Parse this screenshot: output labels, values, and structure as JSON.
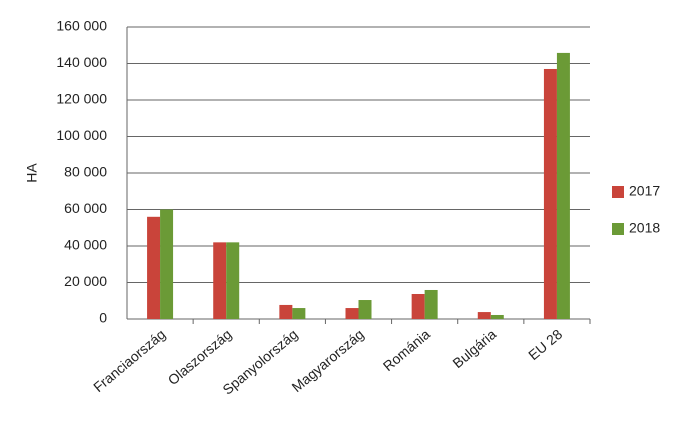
{
  "chart_data": {
    "type": "bar",
    "y_label": "HA",
    "categories": [
      "Franciaország",
      "Olaszország",
      "Spanyolország",
      "Magyarország",
      "Románia",
      "Bulgária",
      "EU 28"
    ],
    "series": [
      {
        "name": "2017",
        "color": "#c9443a",
        "values": [
          56000,
          42000,
          7700,
          6000,
          13700,
          3800,
          137000
        ]
      },
      {
        "name": "2018",
        "color": "#6b9a36",
        "values": [
          60000,
          42000,
          6000,
          10400,
          15900,
          2200,
          145800
        ]
      }
    ],
    "ylim": [
      0,
      160000
    ],
    "yticks": [
      {
        "value": 0,
        "label": "0"
      },
      {
        "value": 20000,
        "label": "20 000"
      },
      {
        "value": 40000,
        "label": "40 000"
      },
      {
        "value": 60000,
        "label": "60 000"
      },
      {
        "value": 80000,
        "label": "80 000"
      },
      {
        "value": 100000,
        "label": "100 000"
      },
      {
        "value": 120000,
        "label": "120 000"
      },
      {
        "value": 140000,
        "label": "140 000"
      },
      {
        "value": 160000,
        "label": "160 000"
      }
    ],
    "grid": true,
    "legend": "right"
  }
}
